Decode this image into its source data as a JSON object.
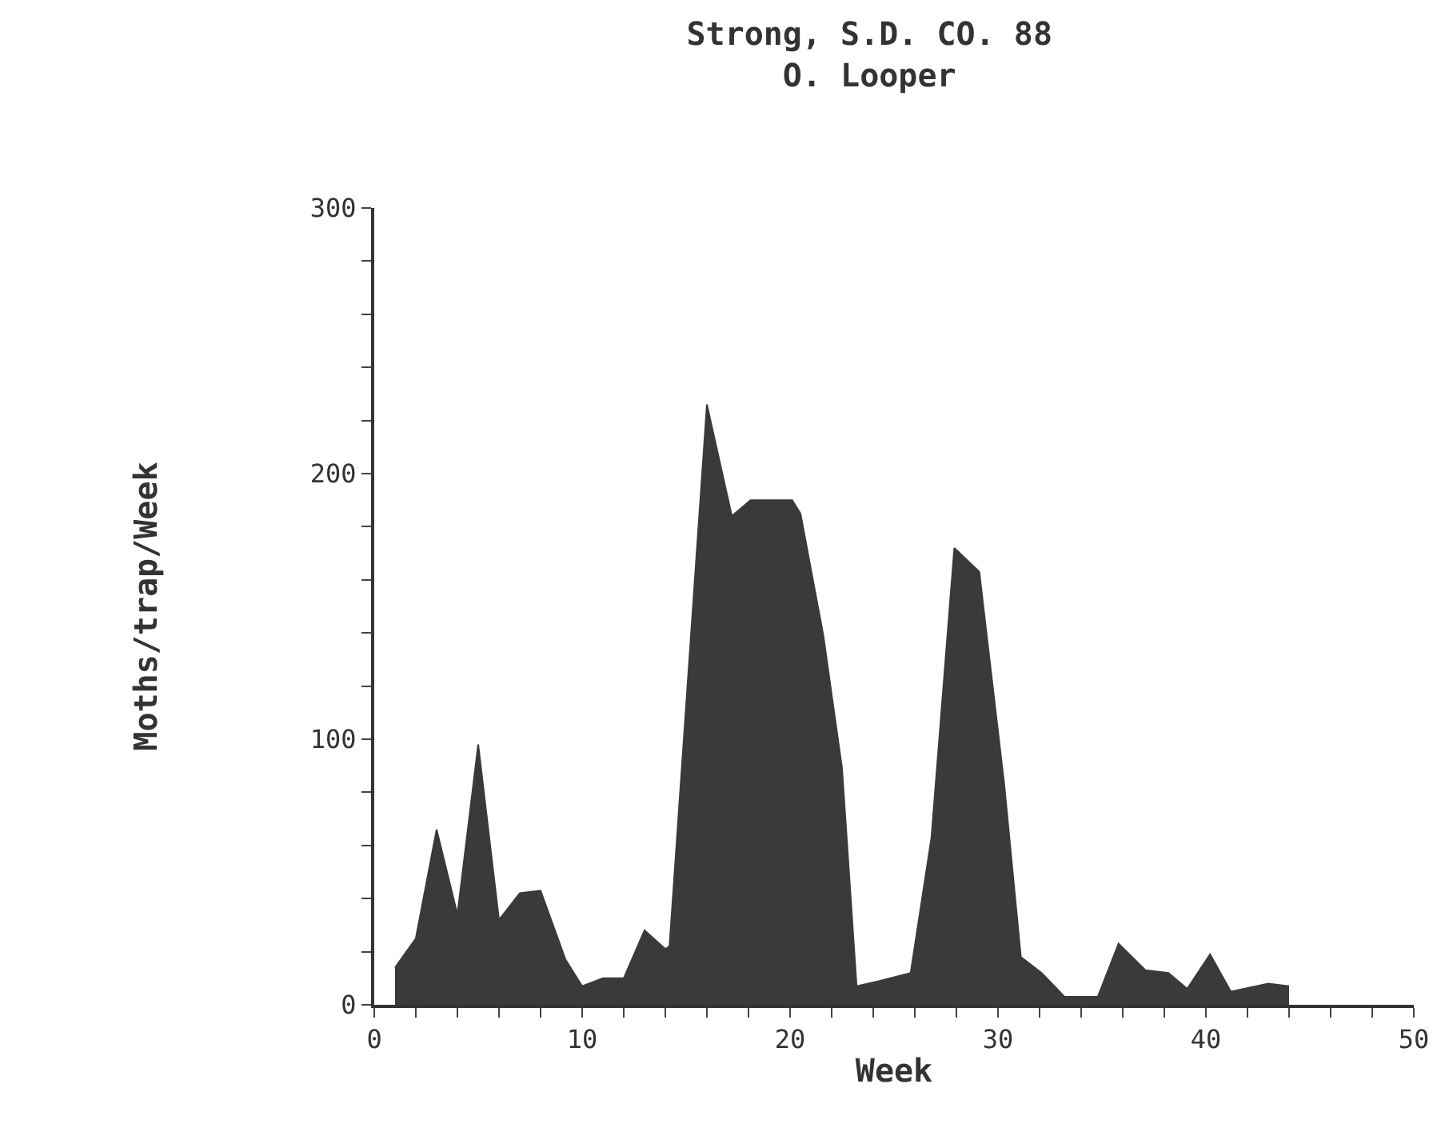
{
  "chart_data": {
    "type": "area",
    "title": "Strong, S.D. CO. 88",
    "subtitle": "O. Looper",
    "xlabel": "Week",
    "ylabel": "Moths/trap/Week",
    "x": [
      1,
      2,
      3,
      4,
      5,
      6,
      7,
      8,
      9.2,
      10,
      11,
      12,
      13,
      14,
      14.2,
      16,
      17.2,
      18.1,
      20.1,
      20.5,
      21.6,
      22.5,
      23.2,
      24.3,
      25.8,
      26.8,
      27.9,
      29.1,
      30.3,
      31.1,
      32.1,
      33.2,
      34.8,
      35.8,
      37.1,
      38.2,
      39.1,
      40.2,
      41.2,
      43,
      44
    ],
    "series": [
      {
        "color": "#3a3a3a",
        "values": [
          14,
          25,
          66,
          34,
          98,
          32,
          42,
          43,
          17,
          7,
          10,
          10,
          28,
          21,
          22,
          226,
          184,
          190,
          190,
          185,
          139,
          89,
          7,
          9,
          12,
          63,
          172,
          163,
          83,
          18,
          12,
          3,
          3,
          23,
          13,
          12,
          6,
          19,
          5,
          8,
          7
        ]
      }
    ],
    "xlim": [
      0,
      50
    ],
    "xticks": [
      0,
      {
        "value": 2,
        "label": null
      },
      {
        "value": 4,
        "label": null
      },
      {
        "value": 6,
        "label": null
      },
      {
        "value": 8,
        "label": null
      },
      10,
      {
        "value": 12,
        "label": null
      },
      {
        "value": 14,
        "label": null
      },
      {
        "value": 16,
        "label": null
      },
      {
        "value": 18,
        "label": null
      },
      20,
      {
        "value": 22,
        "label": null
      },
      {
        "value": 24,
        "label": null
      },
      {
        "value": 26,
        "label": null
      },
      {
        "value": 28,
        "label": null
      },
      30,
      {
        "value": 32,
        "label": null
      },
      {
        "value": 34,
        "label": null
      },
      {
        "value": 36,
        "label": null
      },
      {
        "value": 38,
        "label": null
      },
      40,
      {
        "value": 42,
        "label": null
      },
      {
        "value": 44,
        "label": null
      },
      {
        "value": 46,
        "label": null
      },
      {
        "value": 48,
        "label": null
      },
      50
    ],
    "ylim": [
      0,
      300
    ],
    "yticks": [
      0,
      {
        "value": 20,
        "label": null
      },
      {
        "value": 40,
        "label": null
      },
      {
        "value": 60,
        "label": null
      },
      {
        "value": 80,
        "label": null
      },
      100,
      {
        "value": 120,
        "label": null
      },
      {
        "value": 140,
        "label": null
      },
      {
        "value": 160,
        "label": null
      },
      {
        "value": 180,
        "label": null
      },
      200,
      {
        "value": 220,
        "label": null
      },
      {
        "value": 240,
        "label": null
      },
      {
        "value": 260,
        "label": null
      },
      {
        "value": 280,
        "label": null
      },
      300
    ],
    "grid": false
  }
}
